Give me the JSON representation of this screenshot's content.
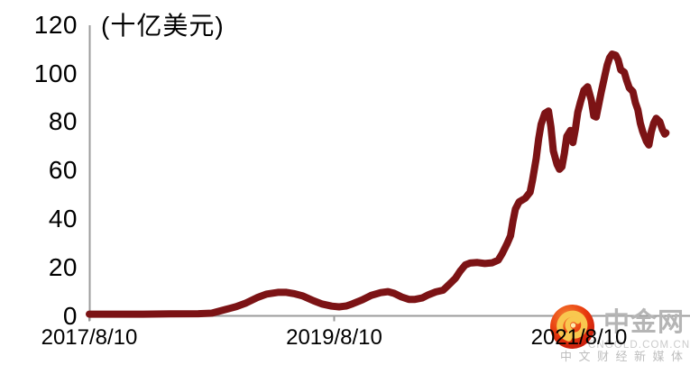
{
  "chart_data": {
    "type": "line",
    "title": "",
    "unit_label": "(十亿美元)",
    "ylabel": "十亿美元",
    "ylim": [
      0,
      120
    ],
    "y_ticks": [
      0,
      20,
      40,
      60,
      80,
      100,
      120
    ],
    "x_ticks": [
      {
        "label": "2017/8/10",
        "t": 0
      },
      {
        "label": "2019/8/10",
        "t": 2
      },
      {
        "label": "2021/8/10",
        "t": 4
      }
    ],
    "x_unit": "years since 2017/8/10",
    "xlim": [
      0,
      4.9
    ],
    "grid": false,
    "legend": false,
    "line_color": "#7C1315",
    "axis_color": "#9B9B9B",
    "series": [
      {
        "name": "",
        "points": [
          [
            0,
            0.7
          ],
          [
            0.22,
            0.7
          ],
          [
            0.44,
            0.7
          ],
          [
            0.66,
            0.8
          ],
          [
            0.89,
            0.9
          ],
          [
            1.0,
            1.1
          ],
          [
            1.11,
            2.6
          ],
          [
            1.2,
            3.8
          ],
          [
            1.28,
            5.3
          ],
          [
            1.37,
            7.5
          ],
          [
            1.45,
            9.0
          ],
          [
            1.54,
            9.7
          ],
          [
            1.61,
            9.7
          ],
          [
            1.67,
            9.2
          ],
          [
            1.74,
            8.3
          ],
          [
            1.83,
            6.3
          ],
          [
            1.9,
            4.9
          ],
          [
            1.98,
            4.0
          ],
          [
            2.04,
            3.7
          ],
          [
            2.1,
            4.1
          ],
          [
            2.15,
            5.0
          ],
          [
            2.23,
            6.6
          ],
          [
            2.3,
            8.4
          ],
          [
            2.38,
            9.6
          ],
          [
            2.44,
            10.0
          ],
          [
            2.49,
            9.3
          ],
          [
            2.55,
            7.8
          ],
          [
            2.61,
            6.8
          ],
          [
            2.66,
            6.8
          ],
          [
            2.72,
            7.4
          ],
          [
            2.77,
            8.7
          ],
          [
            2.83,
            9.9
          ],
          [
            2.89,
            10.6
          ],
          [
            2.94,
            13.0
          ],
          [
            2.99,
            15.5
          ],
          [
            3.03,
            18.5
          ],
          [
            3.07,
            21.0
          ],
          [
            3.11,
            21.8
          ],
          [
            3.17,
            22.0
          ],
          [
            3.23,
            21.6
          ],
          [
            3.29,
            21.9
          ],
          [
            3.34,
            23.0
          ],
          [
            3.37,
            25.5
          ],
          [
            3.41,
            29.5
          ],
          [
            3.44,
            33.0
          ],
          [
            3.46,
            39.0
          ],
          [
            3.48,
            44.0
          ],
          [
            3.51,
            47.0
          ],
          [
            3.56,
            48.5
          ],
          [
            3.6,
            51.0
          ],
          [
            3.62,
            56.0
          ],
          [
            3.65,
            65.0
          ],
          [
            3.67,
            73.0
          ],
          [
            3.69,
            79.0
          ],
          [
            3.72,
            83.5
          ],
          [
            3.75,
            84.5
          ],
          [
            3.77,
            78.0
          ],
          [
            3.79,
            68.0
          ],
          [
            3.82,
            62.5
          ],
          [
            3.84,
            60.5
          ],
          [
            3.86,
            61.5
          ],
          [
            3.88,
            67.0
          ],
          [
            3.9,
            74.0
          ],
          [
            3.93,
            76.5
          ],
          [
            3.95,
            71.5
          ],
          [
            3.97,
            77.0
          ],
          [
            3.99,
            84.0
          ],
          [
            4.01,
            88.0
          ],
          [
            4.04,
            93.0
          ],
          [
            4.07,
            94.5
          ],
          [
            4.1,
            89.0
          ],
          [
            4.12,
            82.5
          ],
          [
            4.14,
            82.0
          ],
          [
            4.16,
            87.0
          ],
          [
            4.18,
            92.0
          ],
          [
            4.21,
            99.0
          ],
          [
            4.23,
            103.5
          ],
          [
            4.25,
            106.5
          ],
          [
            4.27,
            108.0
          ],
          [
            4.3,
            107.5
          ],
          [
            4.32,
            105.5
          ],
          [
            4.34,
            101.5
          ],
          [
            4.37,
            100.5
          ],
          [
            4.39,
            97.0
          ],
          [
            4.41,
            94.0
          ],
          [
            4.44,
            92.5
          ],
          [
            4.46,
            88.0
          ],
          [
            4.48,
            85.0
          ],
          [
            4.5,
            79.5
          ],
          [
            4.52,
            76.0
          ],
          [
            4.55,
            72.0
          ],
          [
            4.57,
            70.5
          ],
          [
            4.59,
            76.0
          ],
          [
            4.61,
            79.5
          ],
          [
            4.63,
            81.5
          ],
          [
            4.66,
            80.0
          ],
          [
            4.68,
            77.0
          ],
          [
            4.7,
            75.0
          ],
          [
            4.71,
            75.5
          ]
        ]
      }
    ]
  },
  "watermark": {
    "brand": "中金网",
    "domain": "CNGOLD.COM.CN",
    "tagline": "中文财经新媒体",
    "logo_color": "#E8380D",
    "swirl_color": "#F9C74F"
  }
}
